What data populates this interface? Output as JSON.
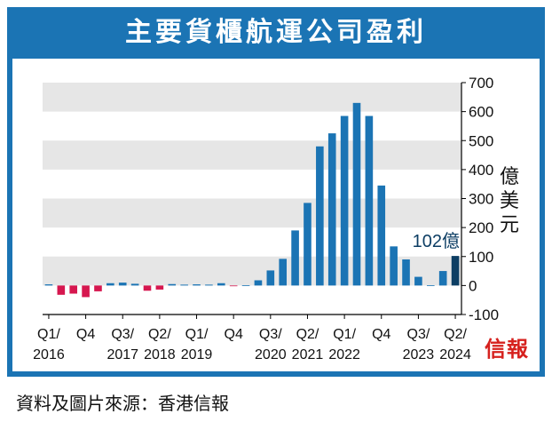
{
  "title": "主要貨櫃航運公司盈利",
  "source": "資料及圖片來源：香港信報",
  "brand": "信報",
  "colors": {
    "frame": "#1b74b4",
    "positive": "#1b74b4",
    "negative": "#d6174f",
    "highlight": "#0d3e64",
    "band": "#e6e6e6"
  },
  "chart_data": {
    "type": "bar",
    "unit": "億美元",
    "annotation": "102億",
    "ylim": [
      -100,
      700
    ],
    "yticks": [
      -100,
      0,
      100,
      200,
      300,
      400,
      500,
      600,
      700
    ],
    "ytick_labels": [
      "-100",
      "0",
      "100",
      "200",
      "300",
      "400",
      "500",
      "600",
      "700"
    ],
    "grid": "horizontal bands",
    "values": [
      4,
      -32,
      -28,
      -40,
      -20,
      8,
      10,
      6,
      -18,
      -14,
      5,
      3,
      4,
      3,
      8,
      -2,
      1,
      18,
      52,
      92,
      190,
      285,
      480,
      525,
      585,
      630,
      585,
      345,
      135,
      90,
      30,
      1,
      50,
      102
    ],
    "highlight_index": 33,
    "xtick_labels": [
      {
        "index": 0,
        "line1": "Q1/",
        "line2": "2016"
      },
      {
        "index": 3,
        "line1": "Q4",
        "line2": ""
      },
      {
        "index": 6,
        "line1": "Q3/",
        "line2": "2017"
      },
      {
        "index": 9,
        "line1": "Q2/",
        "line2": "2018"
      },
      {
        "index": 12,
        "line1": "Q1/",
        "line2": "2019"
      },
      {
        "index": 15,
        "line1": "Q4",
        "line2": ""
      },
      {
        "index": 18,
        "line1": "Q3/",
        "line2": "2020"
      },
      {
        "index": 21,
        "line1": "Q2/",
        "line2": "2021"
      },
      {
        "index": 24,
        "line1": "Q1/",
        "line2": "2022"
      },
      {
        "index": 27,
        "line1": "Q4",
        "line2": ""
      },
      {
        "index": 30,
        "line1": "Q3/",
        "line2": "2023"
      },
      {
        "index": 33,
        "line1": "Q2/",
        "line2": "2024"
      }
    ]
  }
}
